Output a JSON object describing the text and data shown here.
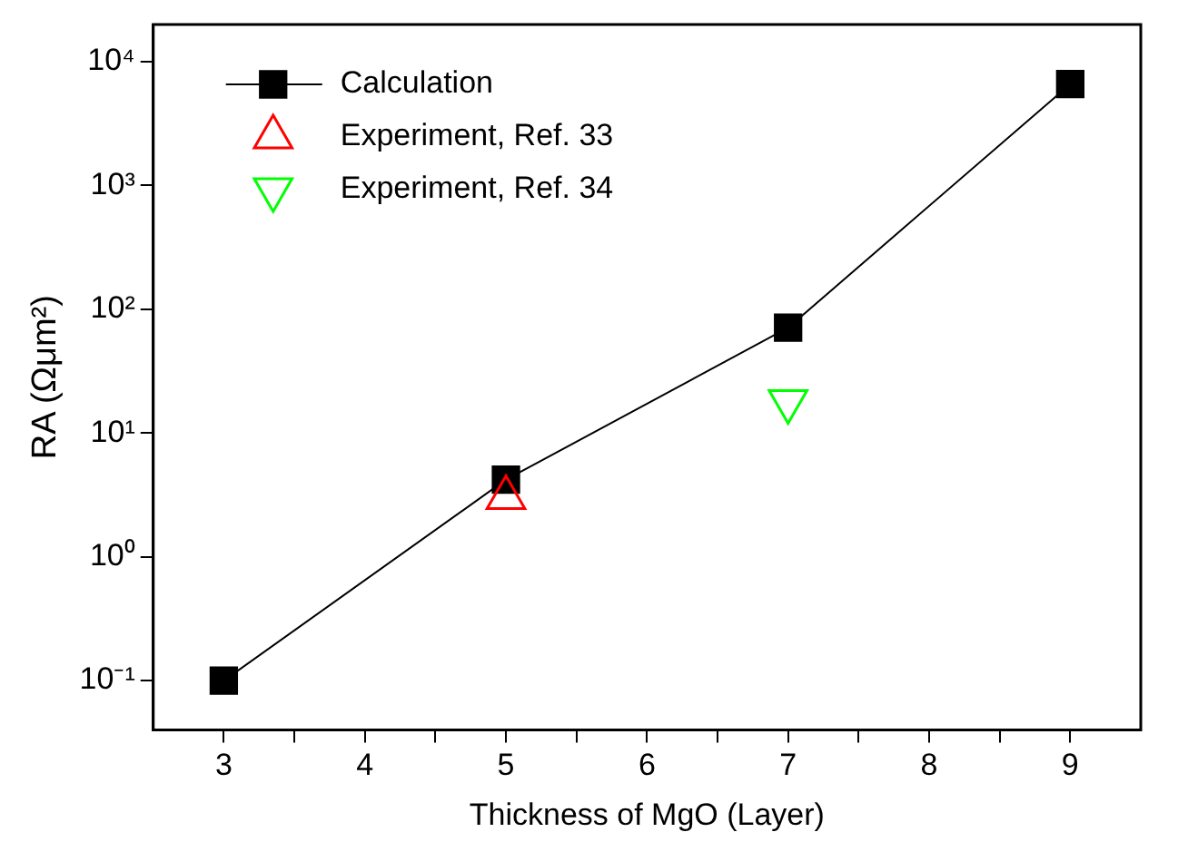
{
  "chart_data": {
    "type": "line",
    "xlabel": "Thickness of MgO (Layer)",
    "ylabel": "RA (Ωμm²)",
    "log": "y",
    "grid": false,
    "legend": "top left",
    "xlim": [
      2.5,
      9.5
    ],
    "xticks": [
      3,
      4,
      5,
      6,
      7,
      8,
      9,
      {
        "value": 3.5,
        "label": null
      },
      {
        "value": 4.5,
        "label": null
      },
      {
        "value": 5.5,
        "label": null
      },
      {
        "value": 6.5,
        "label": null
      },
      {
        "value": 7.5,
        "label": null
      },
      {
        "value": 8.5,
        "label": null
      }
    ],
    "ylim": [
      0.04,
      20000
    ],
    "yticks": [
      {
        "value": 0.1,
        "label": "10⁻¹"
      },
      {
        "value": 1,
        "label": "10⁰"
      },
      {
        "value": 10,
        "label": "10¹"
      },
      {
        "value": 100,
        "label": "10²"
      },
      {
        "value": 1000,
        "label": "10³"
      },
      {
        "value": 10000,
        "label": "10⁴"
      }
    ],
    "series": [
      {
        "name": "Calculation",
        "type": "line",
        "color": "#000000",
        "marker": "square",
        "x": [
          3,
          5,
          7,
          9
        ],
        "values": [
          0.1,
          4.2,
          71,
          6600
        ]
      },
      {
        "name": "Experiment, Ref. 33",
        "type": "scatter",
        "color": "#ff0000",
        "marker": "triangle",
        "x": [
          5
        ],
        "values": [
          3.0
        ]
      },
      {
        "name": "Experiment, Ref. 34",
        "type": "scatter",
        "color": "#00ff00",
        "marker": "triangle_down",
        "x": [
          7
        ],
        "values": [
          18
        ]
      }
    ]
  }
}
